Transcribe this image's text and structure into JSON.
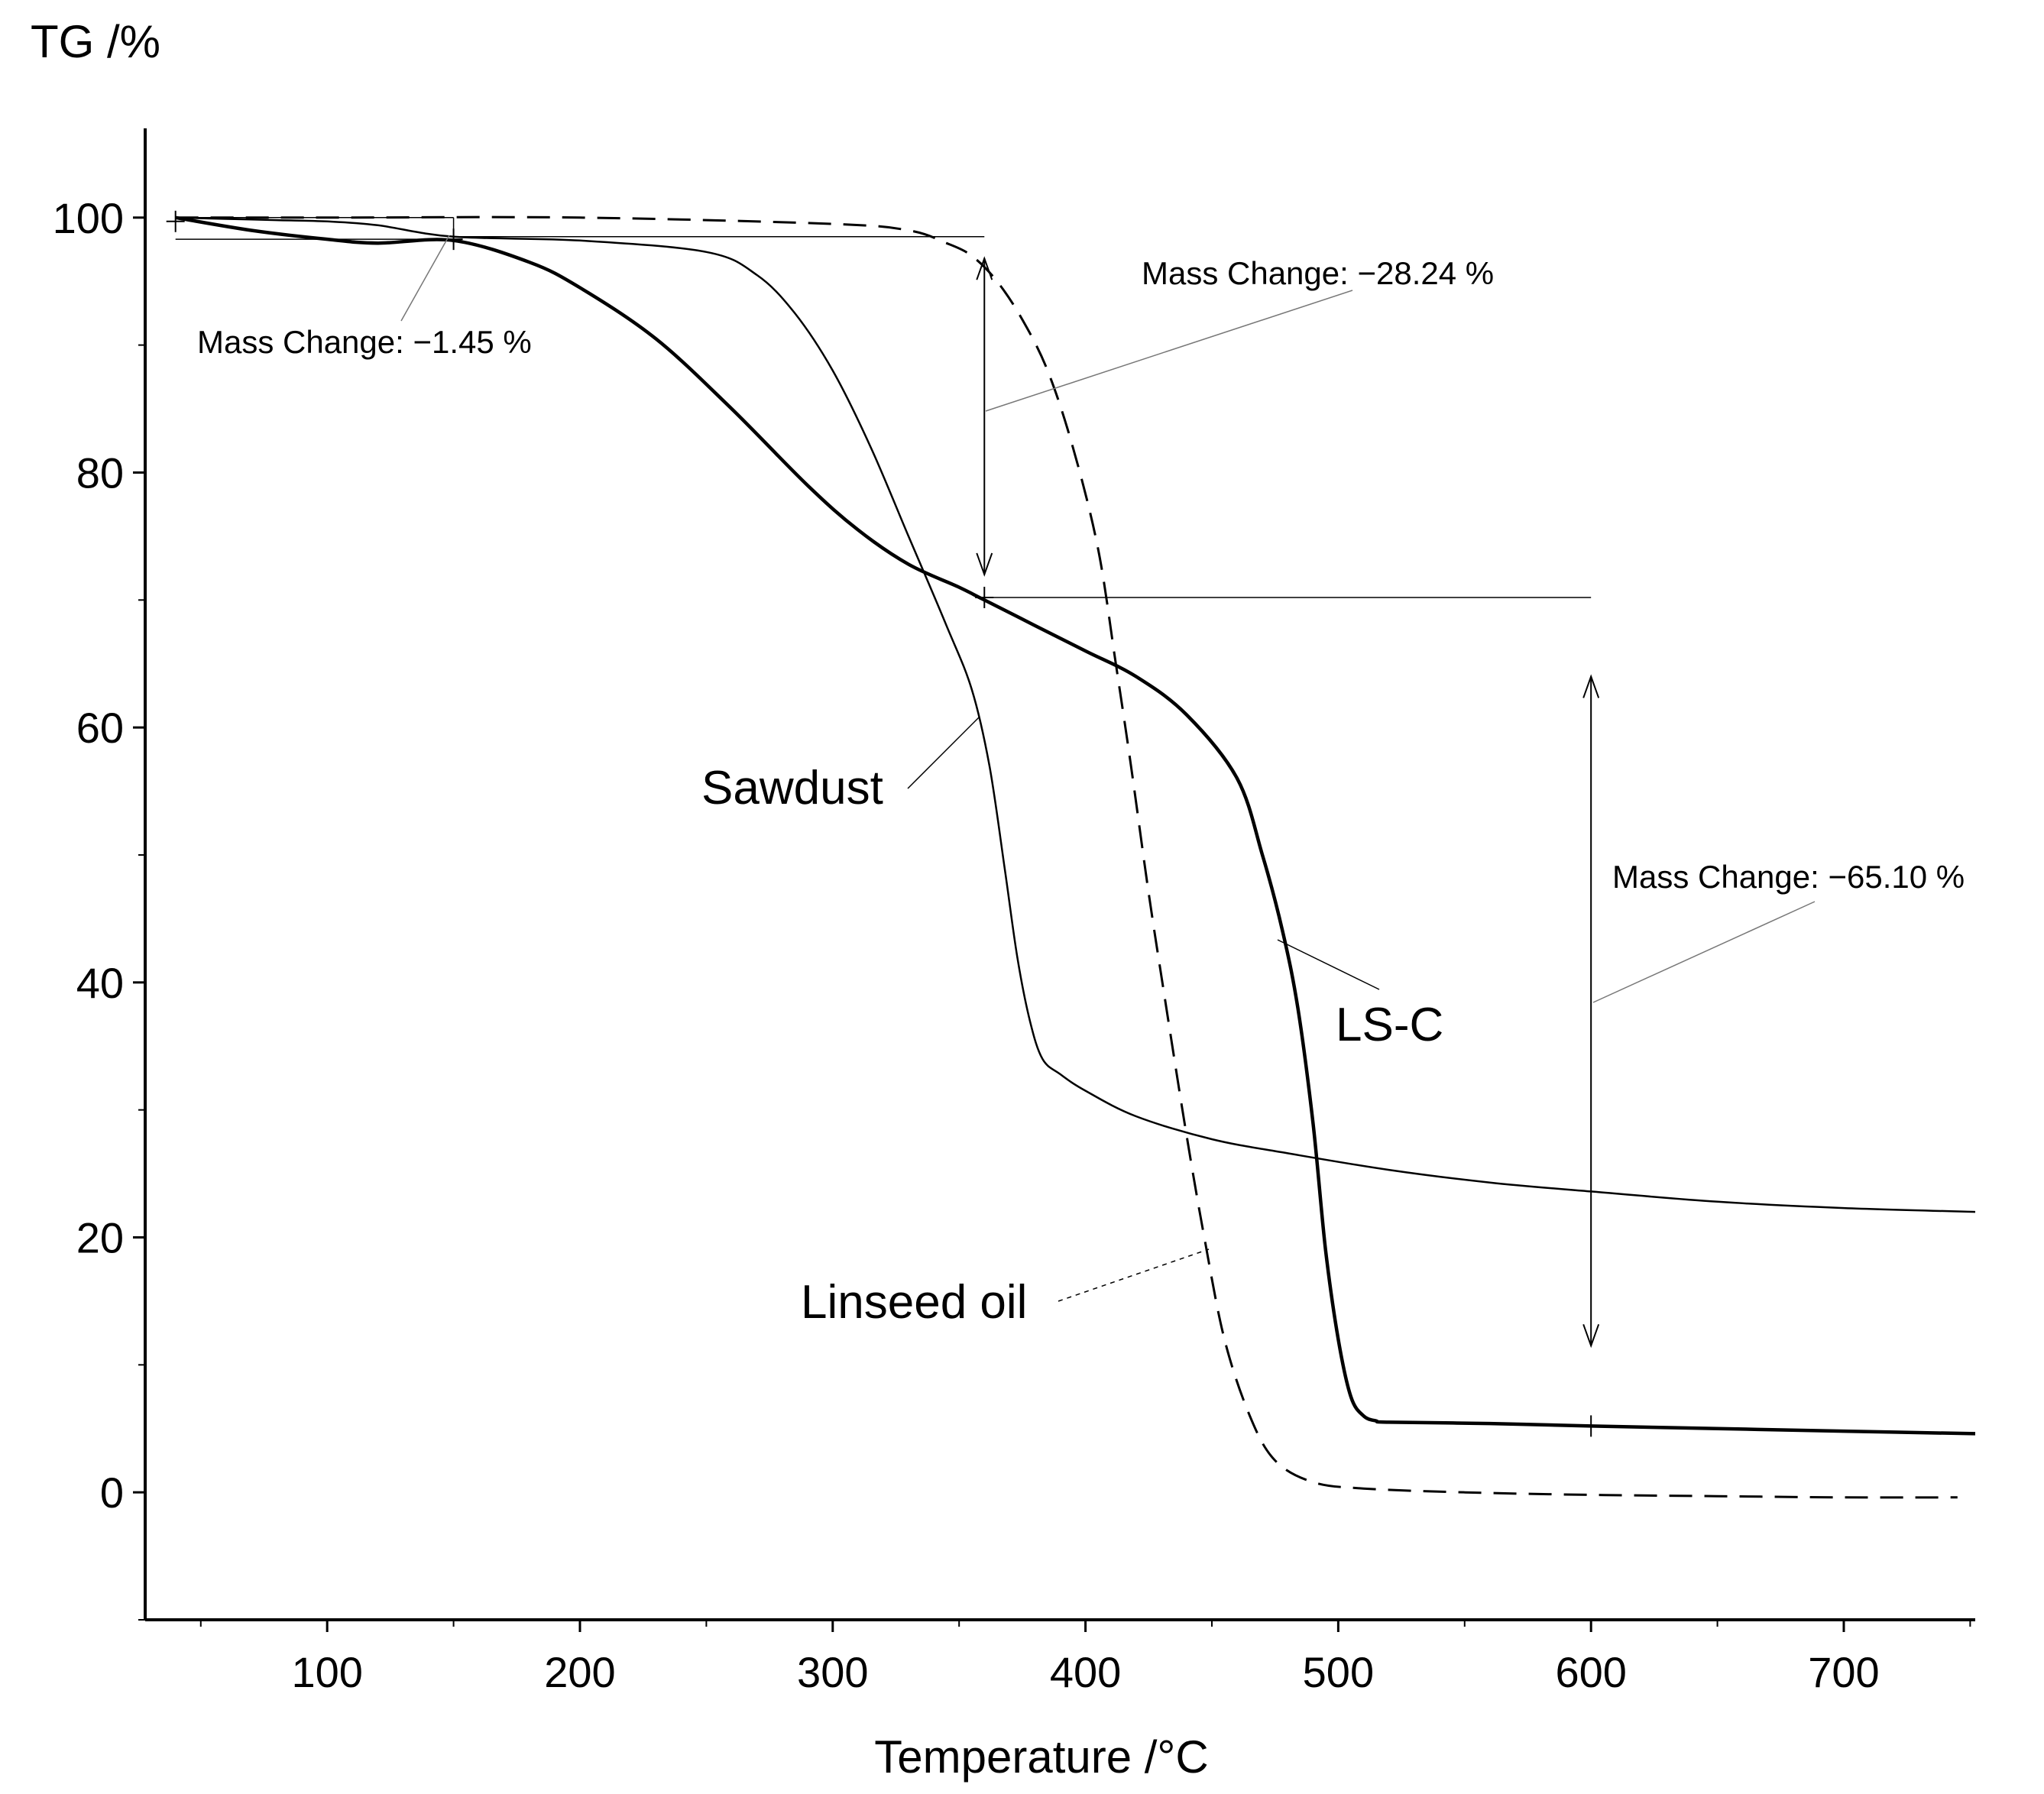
{
  "chart_data": {
    "type": "line",
    "title": "",
    "xlabel": "Temperature /°C",
    "ylabel": "TG /%",
    "xlim": [
      28,
      752
    ],
    "ylim": [
      -10,
      107
    ],
    "xticks": [
      100,
      200,
      300,
      400,
      500,
      600,
      700
    ],
    "yticks": [
      0,
      20,
      40,
      60,
      80,
      100
    ],
    "grid": false,
    "series": [
      {
        "name": "Sawdust",
        "style": "solid",
        "x": [
          40,
          60,
          80,
          100,
          120,
          150,
          200,
          250,
          270,
          285,
          300,
          315,
          330,
          345,
          355,
          362,
          368,
          373,
          378,
          383,
          390,
          400,
          420,
          450,
          480,
          520,
          560,
          600,
          650,
          700,
          752
        ],
        "y": [
          100,
          99.9,
          99.8,
          99.7,
          99.4,
          98.5,
          98.2,
          97.3,
          95.5,
          92.5,
          88,
          82,
          75,
          68,
          63,
          57,
          49,
          42,
          37,
          34,
          32.8,
          31.5,
          29.5,
          27.7,
          26.6,
          25.3,
          24.3,
          23.6,
          22.8,
          22.3,
          22
        ],
        "label": "Sawdust"
      },
      {
        "name": "LS-C",
        "style": "solid-bold",
        "x": [
          40,
          70,
          100,
          120,
          150,
          180,
          200,
          230,
          260,
          290,
          310,
          330,
          350,
          360,
          380,
          400,
          420,
          440,
          460,
          470,
          478,
          484,
          490,
          495,
          500,
          505,
          510,
          515,
          520,
          560,
          600,
          650,
          700,
          752
        ],
        "y": [
          100,
          99,
          98.3,
          98,
          98.2,
          96.5,
          94.5,
          90.5,
          85,
          79,
          75.5,
          72.8,
          71,
          70,
          68,
          66,
          64,
          61,
          56,
          50,
          44,
          38,
          29,
          19,
          12,
          7.5,
          6,
          5.6,
          5.5,
          5.4,
          5.2,
          5,
          4.8,
          4.6
        ],
        "label": "LS-C"
      },
      {
        "name": "Linseed oil",
        "style": "dashed",
        "x": [
          40,
          100,
          200,
          300,
          330,
          345,
          355,
          365,
          375,
          385,
          395,
          405,
          412,
          418,
          425,
          432,
          440,
          447,
          455,
          465,
          475,
          490,
          510,
          550,
          600,
          650,
          700,
          745
        ],
        "y": [
          100,
          100,
          100,
          99.5,
          99,
          98,
          97,
          95,
          92,
          88,
          82,
          74,
          65,
          57,
          47,
          38,
          28,
          20,
          12,
          6,
          2.5,
          0.8,
          0.3,
          0,
          -0.2,
          -0.3,
          -0.4,
          -0.4
        ],
        "label": "Linseed oil"
      }
    ],
    "annotations": [
      {
        "text": "Mass Change: −1.45 %",
        "series": "LS-C",
        "from": [
          40,
          99.7
        ],
        "to": [
          150,
          98.3
        ]
      },
      {
        "text": "Mass Change: −28.24 %",
        "series": "LS-C",
        "from": [
          360,
          98.5
        ],
        "to": [
          360,
          70.2
        ]
      },
      {
        "text": "Mass Change: −65.10 %",
        "series": "LS-C",
        "from": [
          600,
          70.2
        ],
        "to": [
          600,
          5.2
        ]
      }
    ],
    "curve_labels": [
      "Sawdust",
      "LS-C",
      "Linseed oil"
    ]
  }
}
